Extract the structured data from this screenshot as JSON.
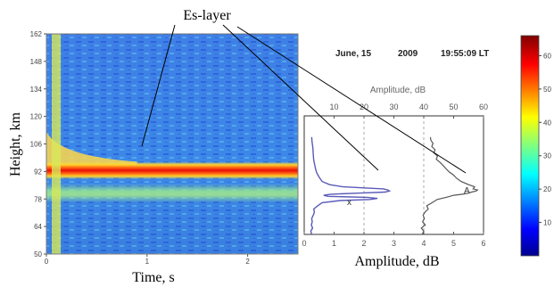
{
  "figure": {
    "annotation": "Es-layer",
    "header": {
      "date": "June, 15",
      "year": "2009",
      "time": "19:55:09 LT"
    }
  },
  "colors": {
    "A_line": "#555555",
    "x_line": "#5a5ab8",
    "annotation_line": "#000000"
  },
  "chart_data": [
    {
      "type": "heatmap",
      "title": "",
      "xlabel": "Time, s",
      "ylabel": "Height, km",
      "xlim": [
        0,
        2.5
      ],
      "ylim": [
        50,
        162
      ],
      "x_ticks": [
        "0",
        "1",
        "2"
      ],
      "x_tick_values": [
        0,
        1,
        2
      ],
      "y_ticks": [
        "50",
        "64",
        "78",
        "92",
        "106",
        "120",
        "134",
        "148",
        "162"
      ],
      "y_tick_values": [
        50,
        64,
        78,
        92,
        106,
        120,
        134,
        148,
        162
      ],
      "features": {
        "strong_band_height_km": [
          88,
          97
        ],
        "strong_band_peak_km": 92,
        "secondary_band_height_km": [
          76,
          86
        ],
        "colormap": "jet"
      }
    },
    {
      "type": "line",
      "title": "",
      "xlabel": "Amplitude, dB",
      "xlabel_top": "Amplitude, dB",
      "ylim": [
        50,
        162
      ],
      "xlim_top": [
        0,
        60
      ],
      "xlim_bottom": [
        0,
        6
      ],
      "x_ticks_top": [
        "10",
        "20",
        "30",
        "40",
        "50",
        "60"
      ],
      "x_tick_values_top": [
        10,
        20,
        30,
        40,
        50,
        60
      ],
      "x_ticks_bottom": [
        "0",
        "1",
        "2",
        "3",
        "4",
        "5",
        "6"
      ],
      "x_tick_values_bottom": [
        0,
        1,
        2,
        3,
        4,
        5,
        6
      ],
      "series": [
        {
          "name": "A",
          "axis": "top",
          "points": [
            [
              39.5,
              50
            ],
            [
              40,
              53
            ],
            [
              39.2,
              56
            ],
            [
              40.5,
              59
            ],
            [
              39.6,
              62
            ],
            [
              40.2,
              65
            ],
            [
              39.8,
              68
            ],
            [
              40.4,
              71
            ],
            [
              41.5,
              74
            ],
            [
              41.0,
              77
            ],
            [
              42.8,
              80
            ],
            [
              44.5,
              83
            ],
            [
              47.5,
              85
            ],
            [
              50,
              87
            ],
            [
              53,
              88
            ],
            [
              55,
              89
            ],
            [
              56,
              90
            ],
            [
              57.5,
              91
            ],
            [
              58,
              92
            ],
            [
              56.5,
              93
            ],
            [
              57,
              95
            ],
            [
              55,
              97
            ],
            [
              52.5,
              100
            ],
            [
              51,
              103
            ],
            [
              50,
              106
            ],
            [
              48.5,
              109
            ],
            [
              47.5,
              112
            ],
            [
              46.5,
              115
            ],
            [
              45.5,
              118
            ],
            [
              44.2,
              121
            ],
            [
              44.6,
              124
            ],
            [
              43.4,
              127
            ],
            [
              43.8,
              130
            ],
            [
              42.7,
              133
            ],
            [
              43.1,
              136
            ],
            [
              42.4,
              139
            ],
            [
              42.2,
              142
            ]
          ]
        },
        {
          "name": "x",
          "axis": "top",
          "points": [
            [
              2.5,
              50
            ],
            [
              2.2,
              53
            ],
            [
              2.8,
              56
            ],
            [
              2.4,
              59
            ],
            [
              2.7,
              62
            ],
            [
              2.5,
              65
            ],
            [
              3.0,
              68
            ],
            [
              3.4,
              71
            ],
            [
              3.2,
              74
            ],
            [
              4.5,
              77
            ],
            [
              6.0,
              80
            ],
            [
              12.0,
              82
            ],
            [
              22.0,
              83
            ],
            [
              24.5,
              84
            ],
            [
              21.0,
              85
            ],
            [
              8.0,
              86
            ],
            [
              6.5,
              87
            ],
            [
              9.0,
              88
            ],
            [
              18.0,
              89
            ],
            [
              27.0,
              90
            ],
            [
              28.5,
              91
            ],
            [
              28.0,
              92
            ],
            [
              26.5,
              93
            ],
            [
              20.0,
              94
            ],
            [
              13.0,
              95
            ],
            [
              8.5,
              97
            ],
            [
              6.0,
              100
            ],
            [
              5.0,
              104
            ],
            [
              4.2,
              108
            ],
            [
              3.8,
              112
            ],
            [
              3.5,
              116
            ],
            [
              3.2,
              120
            ],
            [
              3.0,
              126
            ],
            [
              2.9,
              132
            ],
            [
              2.6,
              138
            ],
            [
              2.5,
              142
            ]
          ]
        }
      ]
    },
    {
      "type": "heatmap",
      "title": "",
      "colorbar_ticks": [
        "10",
        "20",
        "30",
        "40",
        "50",
        "60"
      ],
      "colorbar_tick_values": [
        10,
        20,
        30,
        40,
        50,
        60
      ],
      "colorbar_range": [
        0,
        66
      ],
      "colormap": "jet"
    }
  ]
}
